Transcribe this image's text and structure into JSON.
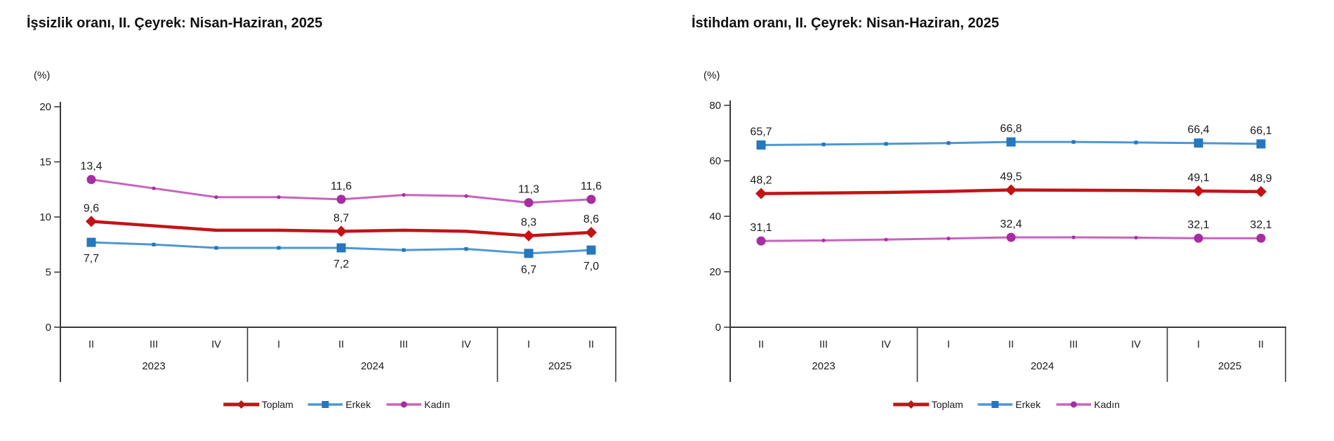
{
  "chart_data": [
    {
      "id": "unemployment",
      "type": "line",
      "title": "İşsizlik oranı, II. Çeyrek: Nisan-Haziran, 2025",
      "unit_label": "(%)",
      "y_max": 20,
      "y_ticks": [
        0,
        5,
        10,
        15,
        20
      ],
      "grid": false,
      "legend_position": "bottom-center",
      "categories": [
        "II",
        "III",
        "IV",
        "I",
        "II",
        "III",
        "IV",
        "I",
        "II"
      ],
      "year_groups": [
        {
          "label": "2023",
          "from": 0,
          "to": 2
        },
        {
          "label": "2024",
          "from": 3,
          "to": 6
        },
        {
          "label": "2025",
          "from": 7,
          "to": 8
        }
      ],
      "series": [
        {
          "name": "Toplam",
          "marker": "diamond",
          "line_color": "#C21417",
          "marker_color": "#C21417",
          "line_width": 4.5,
          "label_pos": "above",
          "values": [
            9.6,
            9.2,
            8.8,
            8.8,
            8.7,
            8.8,
            8.7,
            8.3,
            8.6
          ],
          "point_labels": {
            "0": "9,6",
            "4": "8,7",
            "7": "8,3",
            "8": "8,6"
          }
        },
        {
          "name": "Erkek",
          "marker": "square",
          "line_color": "#4E97D2",
          "marker_color": "#2577BE",
          "line_width": 3,
          "label_pos": "below",
          "values": [
            7.7,
            7.5,
            7.2,
            7.2,
            7.2,
            7.0,
            7.1,
            6.7,
            7.0
          ],
          "point_labels": {
            "0": "7,7",
            "4": "7,2",
            "7": "6,7",
            "8": "7,0"
          }
        },
        {
          "name": "Kadın",
          "marker": "circle",
          "line_color": "#C863BE",
          "marker_color": "#A62DA2",
          "line_width": 3,
          "label_pos": "above",
          "values": [
            13.4,
            12.6,
            11.8,
            11.8,
            11.6,
            12.0,
            11.9,
            11.3,
            11.6
          ],
          "point_labels": {
            "0": "13,4",
            "4": "11,6",
            "7": "11,3",
            "8": "11,6"
          }
        }
      ],
      "px": {
        "axisX": 86,
        "firstX": 130,
        "dx": 89,
        "yZero": 466,
        "yTop": 152,
        "endPad": 35,
        "boxBottom": 543,
        "legendY": 576
      }
    },
    {
      "id": "employment",
      "type": "line",
      "title": "İstihdam oranı, II. Çeyrek: Nisan-Haziran, 2025",
      "unit_label": "(%)",
      "y_max": 80,
      "y_ticks": [
        0,
        20,
        40,
        60,
        80
      ],
      "grid": false,
      "legend_position": "bottom-center",
      "categories": [
        "II",
        "III",
        "IV",
        "I",
        "II",
        "III",
        "IV",
        "I",
        "II"
      ],
      "year_groups": [
        {
          "label": "2023",
          "from": 0,
          "to": 2
        },
        {
          "label": "2024",
          "from": 3,
          "to": 6
        },
        {
          "label": "2025",
          "from": 7,
          "to": 8
        }
      ],
      "series": [
        {
          "name": "Toplam",
          "marker": "diamond",
          "line_color": "#C21417",
          "marker_color": "#C21417",
          "line_width": 4.5,
          "label_pos": "above",
          "values": [
            48.2,
            48.4,
            48.6,
            49.0,
            49.5,
            49.4,
            49.3,
            49.1,
            48.9
          ],
          "point_labels": {
            "0": "48,2",
            "4": "49,5",
            "7": "49,1",
            "8": "48,9"
          }
        },
        {
          "name": "Erkek",
          "marker": "square",
          "line_color": "#4E97D2",
          "marker_color": "#2577BE",
          "line_width": 3,
          "label_pos": "above",
          "values": [
            65.7,
            65.9,
            66.1,
            66.4,
            66.8,
            66.8,
            66.6,
            66.4,
            66.1
          ],
          "point_labels": {
            "0": "65,7",
            "4": "66,8",
            "7": "66,4",
            "8": "66,1"
          }
        },
        {
          "name": "Kadın",
          "marker": "circle",
          "line_color": "#C863BE",
          "marker_color": "#A62DA2",
          "line_width": 3,
          "label_pos": "above",
          "values": [
            31.1,
            31.3,
            31.6,
            32.0,
            32.4,
            32.4,
            32.3,
            32.1,
            32.1
          ],
          "point_labels": {
            "0": "31,1",
            "4": "32,4",
            "7": "32,1",
            "8": "32,1"
          }
        }
      ],
      "px": {
        "axisX": 1040,
        "firstX": 1084,
        "dx": 89,
        "yZero": 466,
        "yTop": 150,
        "endPad": 35,
        "boxBottom": 543,
        "legendY": 576
      }
    }
  ],
  "colors": {
    "toplam": "#C21417",
    "erkek_line": "#4E97D2",
    "erkek_marker": "#2577BE",
    "kadin_line": "#C863BE",
    "kadin_marker": "#A62DA2",
    "axis": "#3a3a3a",
    "text": "#1a1a1a"
  }
}
